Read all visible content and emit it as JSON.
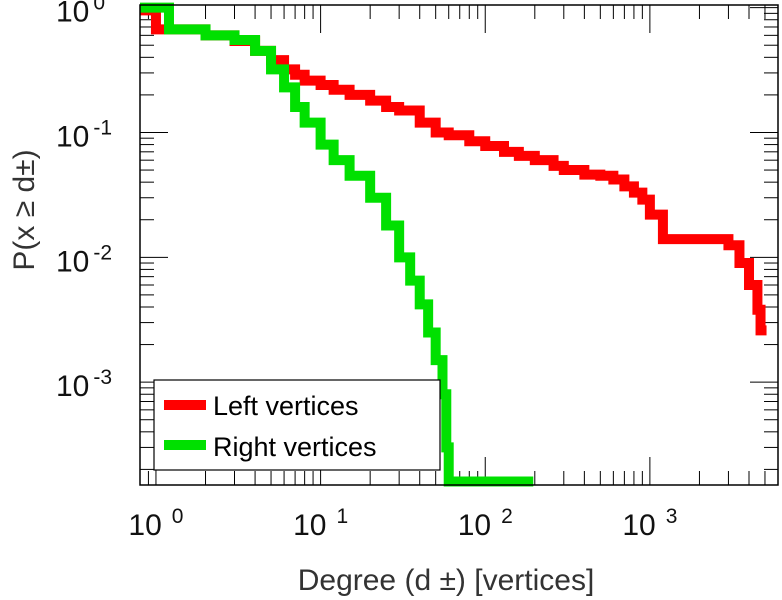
{
  "chart_data": {
    "type": "line",
    "subtype": "step-ccdf",
    "xlabel": "Degree (d ±) [vertices]",
    "ylabel": "P(x ≥ d±)",
    "xscale": "log",
    "yscale": "log",
    "xlim": [
      0.8,
      6000
    ],
    "ylim": [
      0.00015,
      1.05
    ],
    "x_ticks": [
      {
        "value": 1,
        "base": "10",
        "exp": "0"
      },
      {
        "value": 10,
        "base": "10",
        "exp": "1"
      },
      {
        "value": 100,
        "base": "10",
        "exp": "2"
      },
      {
        "value": 1000,
        "base": "10",
        "exp": "3"
      }
    ],
    "y_ticks": [
      {
        "value": 1,
        "base": "10",
        "exp": "0"
      },
      {
        "value": 0.1,
        "base": "10",
        "exp": "-1"
      },
      {
        "value": 0.01,
        "base": "10",
        "exp": "-2"
      },
      {
        "value": 0.001,
        "base": "10",
        "exp": "-3"
      }
    ],
    "grid": false,
    "legend": {
      "position": "bottom-left"
    },
    "series": [
      {
        "name": "Left vertices",
        "color": "#ff0000",
        "x": [
          0.8,
          1,
          2,
          3,
          4,
          5,
          6,
          7,
          8,
          10,
          12,
          15,
          20,
          25,
          30,
          40,
          50,
          60,
          80,
          100,
          130,
          160,
          200,
          260,
          300,
          400,
          500,
          600,
          700,
          800,
          900,
          1000,
          1200,
          3000,
          3500,
          4000,
          4500,
          4700
        ],
        "y": [
          0.95,
          0.67,
          0.6,
          0.54,
          0.45,
          0.38,
          0.32,
          0.29,
          0.26,
          0.24,
          0.22,
          0.2,
          0.18,
          0.16,
          0.15,
          0.12,
          0.1,
          0.095,
          0.085,
          0.078,
          0.07,
          0.065,
          0.06,
          0.054,
          0.05,
          0.046,
          0.045,
          0.042,
          0.037,
          0.033,
          0.029,
          0.022,
          0.014,
          0.0125,
          0.009,
          0.006,
          0.0038,
          0.0026
        ]
      },
      {
        "name": "Right vertices",
        "color": "#00e000",
        "x": [
          0.8,
          1.2,
          2,
          3,
          4,
          5,
          6,
          7,
          8,
          10,
          12,
          15,
          20,
          25,
          30,
          35,
          40,
          45,
          50,
          55,
          58,
          60,
          65,
          100,
          180
        ],
        "y": [
          1,
          0.67,
          0.6,
          0.55,
          0.45,
          0.32,
          0.23,
          0.16,
          0.12,
          0.08,
          0.06,
          0.045,
          0.03,
          0.018,
          0.01,
          0.0065,
          0.0042,
          0.0025,
          0.0015,
          0.0008,
          0.0003,
          0.00016,
          0.00016,
          0.00016,
          0.00016
        ]
      }
    ]
  }
}
